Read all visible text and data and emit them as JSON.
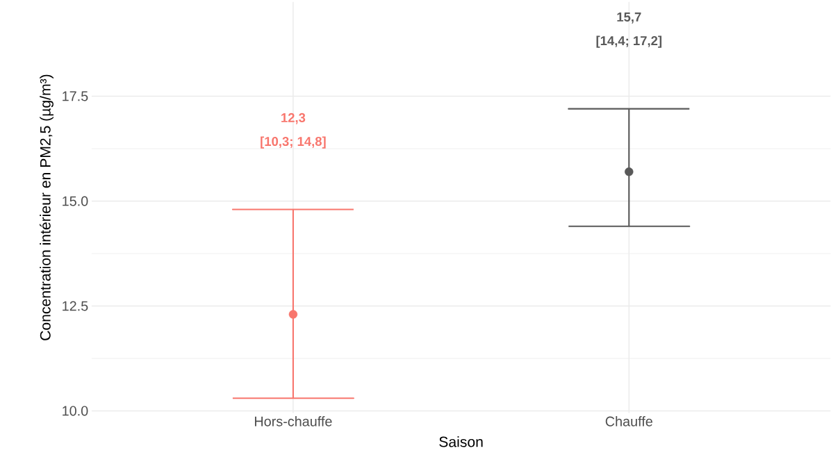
{
  "chart_data": {
    "type": "scatter",
    "xlabel": "Saison",
    "ylabel": "Concentration intérieur en PM2,5 (µg/m³)",
    "categories": [
      "Hors-chauffe",
      "Chauffe"
    ],
    "values": [
      12.3,
      15.7
    ],
    "errors": [
      [
        10.3,
        14.8
      ],
      [
        14.4,
        17.2
      ]
    ],
    "colors": [
      "#f8766d",
      "#595959"
    ],
    "ylim": [
      9.95,
      19.75
    ],
    "yticks": [
      {
        "value": 10,
        "label": "10.0"
      },
      {
        "value": 12.5,
        "label": "12.5"
      },
      {
        "value": 15,
        "label": "15.0"
      },
      {
        "value": 17.5,
        "label": "17.5"
      }
    ],
    "grid": true,
    "annotations": [
      "12,3",
      "[10,3; 14,8]",
      "15,7",
      "[14,4; 17,2]"
    ]
  }
}
